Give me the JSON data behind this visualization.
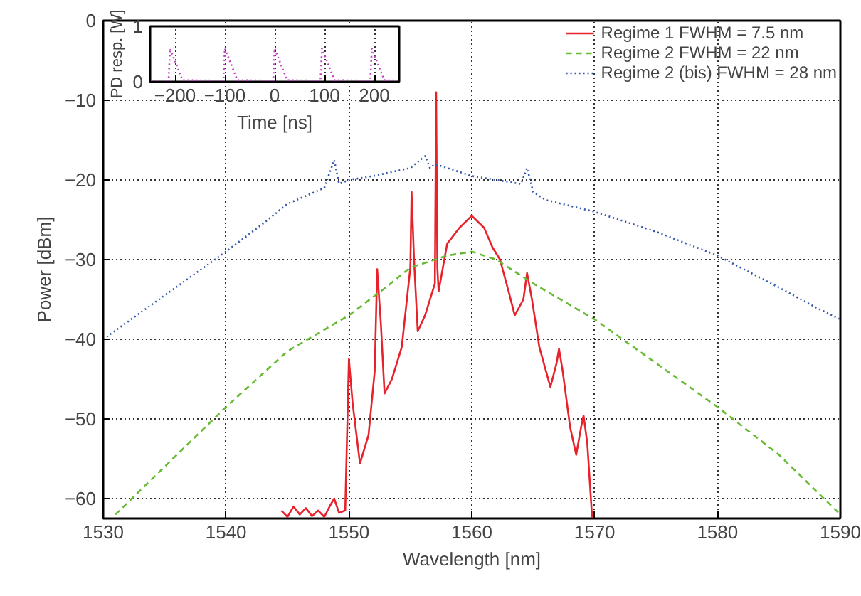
{
  "chart_data": [
    {
      "type": "line",
      "xlabel": "Wavelength [nm]",
      "ylabel": "Power [dBm]",
      "xlim": [
        1530,
        1590
      ],
      "ylim": [
        -62.5,
        0
      ],
      "xticks": [
        1530,
        1540,
        1550,
        1560,
        1570,
        1580,
        1590
      ],
      "yticks": [
        -60,
        -50,
        -40,
        -30,
        -20,
        -10,
        0
      ],
      "grid": true,
      "legend": "top right",
      "series": [
        {
          "name": "Regime 1 FWHM = 7.5 nm",
          "color": "#e8222a",
          "line_style": "solid",
          "x": [
            1544.5,
            1545,
            1545.5,
            1546,
            1546.5,
            1547,
            1547.5,
            1548,
            1548.5,
            1548.8,
            1549.2,
            1549.7,
            1550,
            1550.3,
            1550.9,
            1551.6,
            1552.1,
            1552.3,
            1552.6,
            1552.9,
            1553.5,
            1554.3,
            1555.0,
            1555.1,
            1555.3,
            1555.6,
            1556.2,
            1557.0,
            1557.1,
            1557.2,
            1557.3,
            1558,
            1559,
            1560,
            1561,
            1561.7,
            1562.3,
            1563,
            1563.5,
            1564.2,
            1564.5,
            1564.9,
            1565.5,
            1566.4,
            1566.9,
            1567.1,
            1567.4,
            1568,
            1568.5,
            1568.9,
            1569.1,
            1569.4,
            1569.8
          ],
          "values": [
            -61.5,
            -62.3,
            -61,
            -62,
            -61.2,
            -62.2,
            -61.5,
            -62.3,
            -60.8,
            -60,
            -61.8,
            -61.5,
            -42.5,
            -48,
            -55.6,
            -52,
            -44,
            -31.2,
            -38,
            -46.8,
            -45,
            -41,
            -31,
            -21.5,
            -30,
            -39,
            -37,
            -33,
            -9,
            -31,
            -34,
            -28,
            -26,
            -24.5,
            -26,
            -28.5,
            -30,
            -34,
            -37,
            -35,
            -31.7,
            -35,
            -41,
            -46,
            -43,
            -41.2,
            -44,
            -51,
            -54.5,
            -51,
            -49.6,
            -53,
            -62.5
          ]
        },
        {
          "name": "Regime 2 FWHM = 22 nm",
          "color": "#66bb33",
          "line_style": "dashed",
          "x": [
            1531,
            1535,
            1540,
            1545,
            1550,
            1553,
            1555,
            1558,
            1560,
            1562,
            1565,
            1570,
            1575,
            1580,
            1585,
            1590
          ],
          "values": [
            -62,
            -56,
            -48.5,
            -41.5,
            -37,
            -33.5,
            -31,
            -29.5,
            -29,
            -30,
            -33,
            -37.5,
            -43,
            -48.5,
            -54.5,
            -62
          ]
        },
        {
          "name": "Regime 2 (bis) FWHM = 28 nm",
          "color": "#3355aa",
          "line_style": "dotted",
          "x": [
            1530,
            1535,
            1540,
            1543,
            1545,
            1548,
            1548.8,
            1549.2,
            1550,
            1552,
            1555,
            1556.2,
            1556.6,
            1557,
            1560,
            1562,
            1564,
            1564.5,
            1565,
            1566,
            1570,
            1575,
            1580,
            1585,
            1588,
            1590
          ],
          "values": [
            -40,
            -34.5,
            -29,
            -25.5,
            -23,
            -21,
            -17.5,
            -20.5,
            -20,
            -19.5,
            -18.5,
            -17,
            -18.5,
            -18,
            -19.5,
            -20,
            -20.5,
            -18.5,
            -21.5,
            -22.5,
            -24,
            -26.5,
            -29.5,
            -33.5,
            -36,
            -37.5
          ]
        }
      ]
    },
    {
      "type": "line",
      "xlabel": "Time [ns]",
      "ylabel": "PD resp. [W]",
      "xlim": [
        -250,
        250
      ],
      "ylim": [
        0,
        1
      ],
      "xticks": [
        -200,
        -100,
        0,
        100,
        200
      ],
      "yticks": [
        0,
        1
      ],
      "grid": "x",
      "series": [
        {
          "color": "#c040c0",
          "line_style": "dotted",
          "x": [
            -250,
            -213,
            -210,
            -185,
            -103,
            -100,
            -75,
            -3,
            0,
            25,
            92,
            95,
            120,
            192,
            195,
            220,
            250
          ],
          "values": [
            0.02,
            0.02,
            0.6,
            0.03,
            0.02,
            0.6,
            0.03,
            0.02,
            0.6,
            0.03,
            0.02,
            0.6,
            0.03,
            0.02,
            0.6,
            0.03,
            0.02
          ]
        }
      ]
    }
  ]
}
